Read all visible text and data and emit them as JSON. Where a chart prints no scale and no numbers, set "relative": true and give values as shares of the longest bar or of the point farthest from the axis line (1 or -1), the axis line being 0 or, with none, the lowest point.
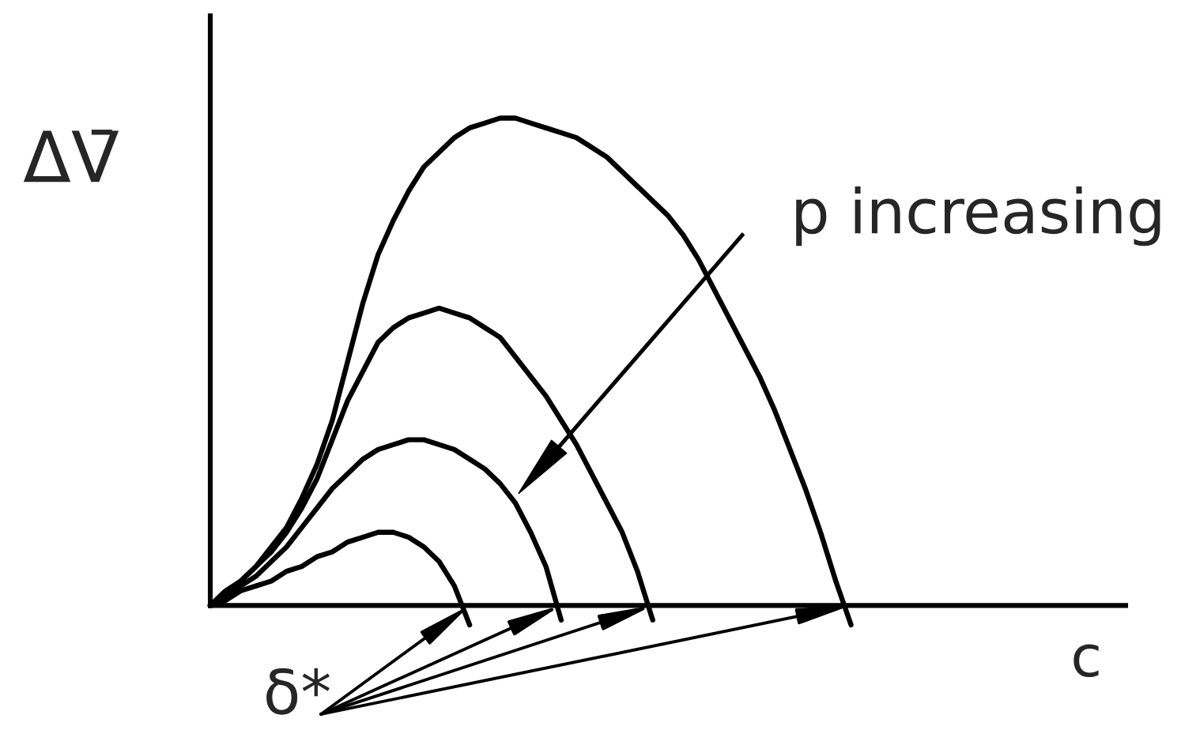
{
  "chart_data": {
    "type": "line",
    "relative": true,
    "xlabel": "c",
    "ylabel": "ΔV̄",
    "annotations": [
      "p increasing",
      "δ*"
    ],
    "categories": [
      null,
      null,
      null,
      null,
      null,
      null,
      null,
      null,
      null,
      null,
      null,
      null,
      null,
      null,
      null,
      null,
      null,
      null,
      null,
      null,
      null,
      null,
      null,
      null,
      null,
      null,
      null,
      null,
      null,
      null,
      null,
      null,
      null,
      null,
      null,
      null,
      null,
      null,
      null,
      null,
      null,
      null,
      null,
      null,
      null,
      null,
      null,
      null,
      null,
      null,
      null,
      null,
      null,
      null,
      null,
      null,
      null,
      null,
      null,
      null,
      null
    ],
    "series": [
      {
        "color": "#000000",
        "values": [
          0,
          0.01,
          0.03,
          0.04,
          0.05,
          0.07,
          0.08,
          0.1,
          0.11,
          0.13,
          0.14,
          0.15,
          0.15,
          0.14,
          0.12,
          0.09,
          0.04,
          -0.04,
          null,
          null,
          null,
          null,
          null,
          null,
          null,
          null,
          null,
          null,
          null,
          null,
          null,
          null,
          null,
          null,
          null,
          null,
          null,
          null,
          null,
          null,
          null,
          null,
          null,
          null,
          null,
          null,
          null,
          null,
          null,
          null,
          null,
          null,
          null,
          null,
          null,
          null,
          null,
          null,
          null,
          null,
          null
        ]
      },
      {
        "color": "#000000",
        "values": [
          0,
          0.02,
          0.04,
          0.06,
          0.09,
          0.12,
          0.16,
          0.2,
          0.24,
          0.27,
          0.3,
          0.32,
          0.33,
          0.34,
          0.34,
          0.33,
          0.32,
          0.3,
          0.28,
          0.25,
          0.21,
          0.15,
          0.08,
          -0.03,
          null,
          null,
          null,
          null,
          null,
          null,
          null,
          null,
          null,
          null,
          null,
          null,
          null,
          null,
          null,
          null,
          null,
          null,
          null,
          null,
          null,
          null,
          null,
          null,
          null,
          null,
          null,
          null,
          null,
          null,
          null,
          null,
          null,
          null,
          null,
          null,
          null
        ]
      },
      {
        "color": "#000000",
        "values": [
          0,
          0.02,
          0.05,
          0.08,
          0.11,
          0.15,
          0.2,
          0.26,
          0.34,
          0.42,
          0.48,
          0.54,
          0.57,
          0.59,
          0.6,
          0.61,
          0.6,
          0.59,
          0.57,
          0.55,
          0.51,
          0.47,
          0.43,
          0.38,
          0.33,
          0.27,
          0.21,
          0.15,
          0.07,
          -0.03,
          null,
          null,
          null,
          null,
          null,
          null,
          null,
          null,
          null,
          null,
          null,
          null,
          null,
          null,
          null,
          null,
          null,
          null,
          null,
          null,
          null,
          null,
          null,
          null,
          null,
          null,
          null,
          null,
          null,
          null,
          null
        ]
      },
      {
        "color": "#000000",
        "values": [
          0,
          0.03,
          0.05,
          0.08,
          0.12,
          0.16,
          0.22,
          0.29,
          0.38,
          0.5,
          0.62,
          0.72,
          0.79,
          0.85,
          0.9,
          0.93,
          0.96,
          0.98,
          0.99,
          1,
          1,
          0.99,
          0.98,
          0.97,
          0.96,
          0.94,
          0.92,
          0.89,
          0.86,
          0.83,
          0.8,
          0.76,
          0.71,
          0.65,
          0.59,
          0.53,
          0.47,
          0.4,
          0.32,
          0.24,
          0.15,
          0.05,
          -0.04,
          null,
          null,
          null,
          null,
          null,
          null,
          null,
          null,
          null,
          null,
          null,
          null,
          null,
          null,
          null,
          null,
          null,
          null
        ]
      }
    ]
  }
}
